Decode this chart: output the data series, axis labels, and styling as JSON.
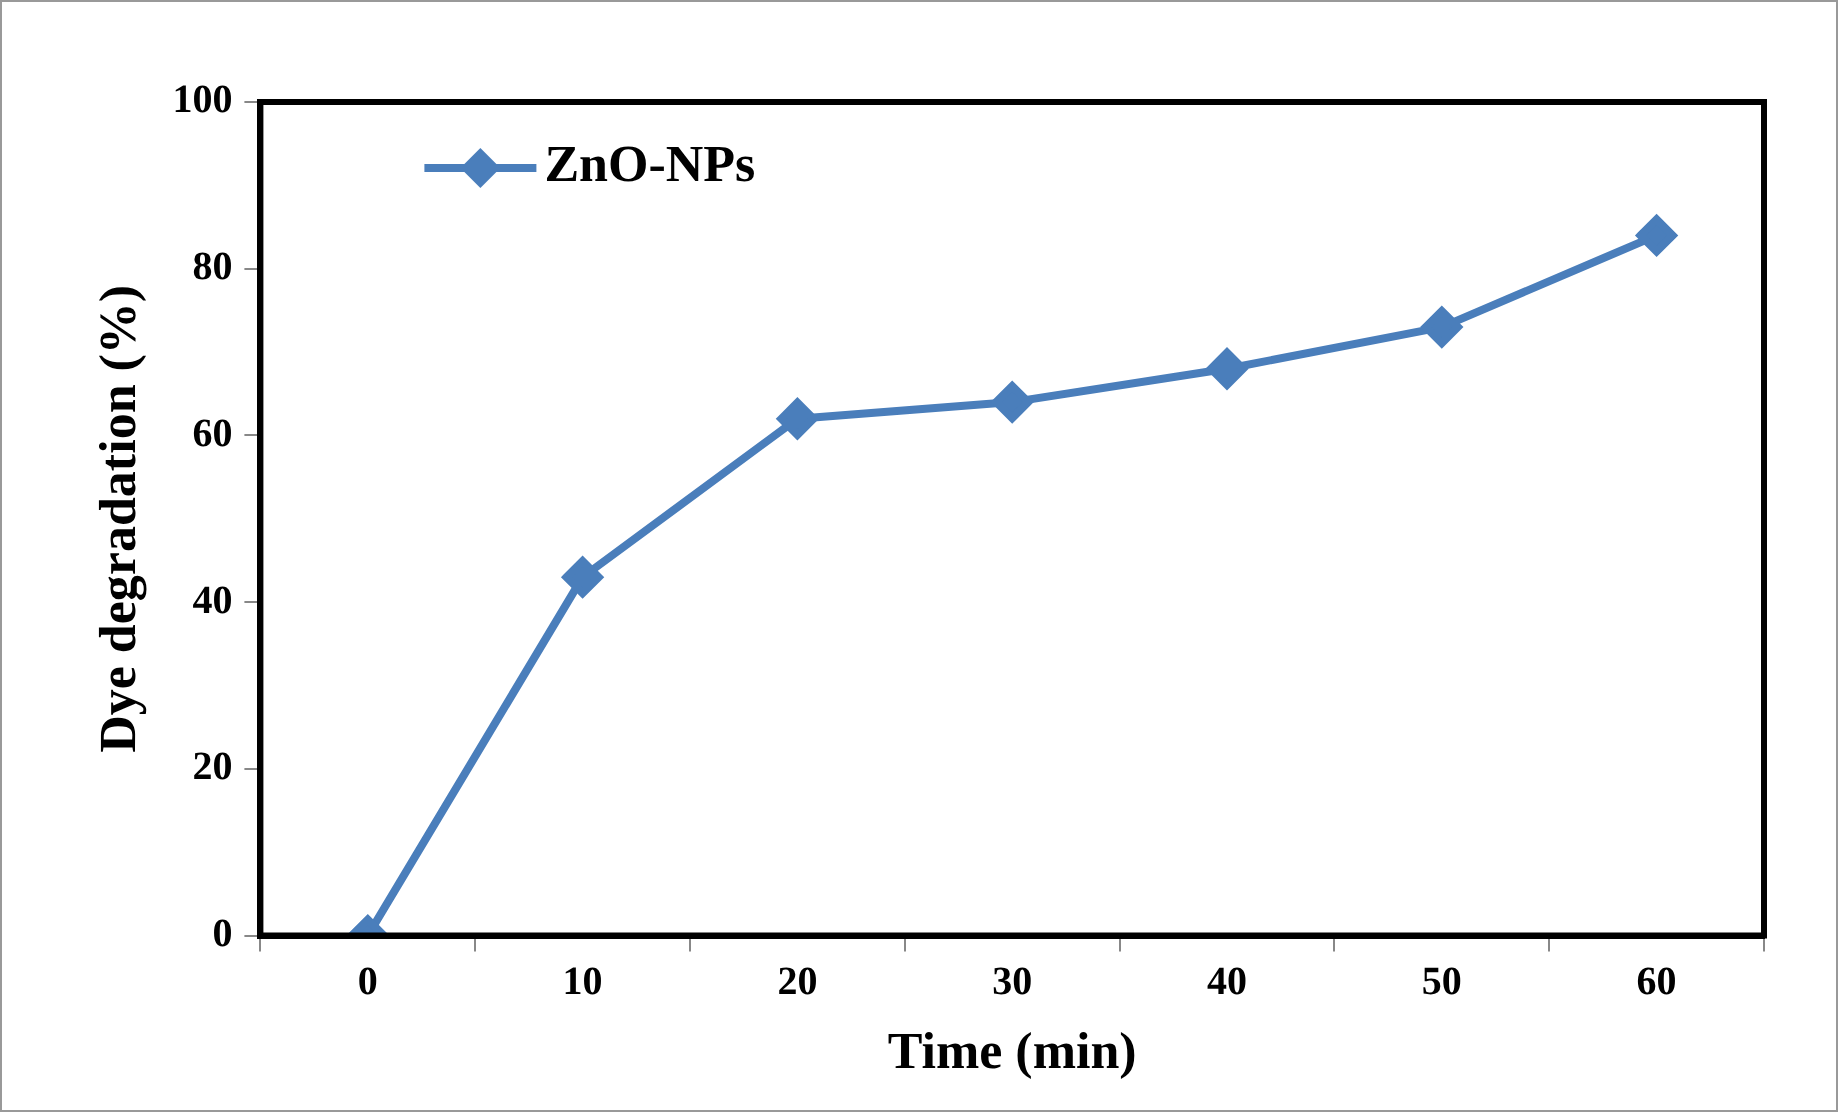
{
  "chart_data": {
    "type": "line",
    "xlabel": "Time (min)",
    "ylabel": "Dye degradation (%)",
    "categories": [
      "0",
      "10",
      "20",
      "30",
      "40",
      "50",
      "60"
    ],
    "series": [
      {
        "name": "ZnO-NPs",
        "color": "#4a7ebb",
        "values": [
          0,
          43,
          62,
          64,
          68,
          73,
          84
        ]
      }
    ],
    "ylim": [
      0,
      100
    ],
    "yticks": [
      0,
      20,
      40,
      60,
      80,
      100
    ],
    "grid": false,
    "legend": "top left",
    "marker": "diamond",
    "line_style": "solid"
  }
}
